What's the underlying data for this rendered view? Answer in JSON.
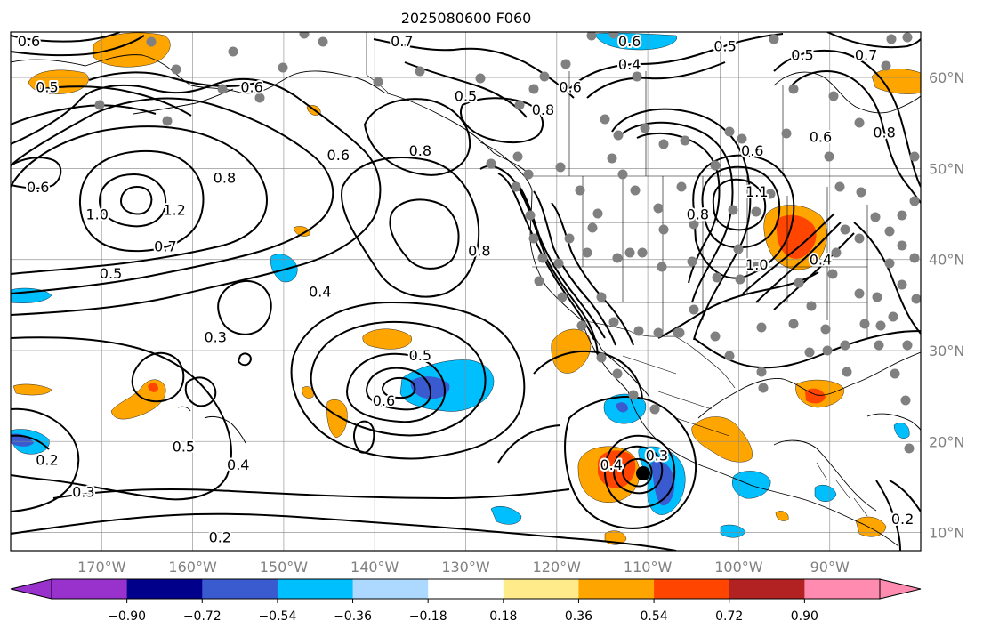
{
  "title": "2025080600 F060",
  "map": {
    "lon_range": [
      -180,
      -80
    ],
    "lat_range": [
      8,
      65
    ],
    "lat_ticks": [
      {
        "value": 60,
        "label": "60°N"
      },
      {
        "value": 50,
        "label": "50°N"
      },
      {
        "value": 40,
        "label": "40°N"
      },
      {
        "value": 30,
        "label": "30°N"
      },
      {
        "value": 20,
        "label": "20°N"
      },
      {
        "value": 10,
        "label": "10°N"
      }
    ],
    "lon_ticks": [
      {
        "value": -170,
        "label": "170°W"
      },
      {
        "value": -160,
        "label": "160°W"
      },
      {
        "value": -150,
        "label": "150°W"
      },
      {
        "value": -140,
        "label": "140°W"
      },
      {
        "value": -130,
        "label": "130°W"
      },
      {
        "value": -120,
        "label": "120°W"
      },
      {
        "value": -110,
        "label": "110°W"
      },
      {
        "value": -100,
        "label": "100°W"
      },
      {
        "value": -90,
        "label": "90°W"
      }
    ],
    "tick_label_color": "#808080",
    "grid": true
  },
  "contour_labels": [
    {
      "text": "0.6",
      "lon": -178,
      "lat": 64
    },
    {
      "text": "0.5",
      "lon": -176,
      "lat": 59
    },
    {
      "text": "0.6",
      "lon": -177,
      "lat": 48
    },
    {
      "text": "1.0",
      "lon": -170.5,
      "lat": 45
    },
    {
      "text": "1.2",
      "lon": -162,
      "lat": 45.5
    },
    {
      "text": "0.8",
      "lon": -156.5,
      "lat": 49
    },
    {
      "text": "0.7",
      "lon": -163,
      "lat": 41.5
    },
    {
      "text": "0.5",
      "lon": -169,
      "lat": 38.5
    },
    {
      "text": "0.6",
      "lon": -153.5,
      "lat": 59
    },
    {
      "text": "0.6",
      "lon": -144,
      "lat": 51.5
    },
    {
      "text": "0.8",
      "lon": -135,
      "lat": 52
    },
    {
      "text": "0.5",
      "lon": -130,
      "lat": 58
    },
    {
      "text": "0.7",
      "lon": -137,
      "lat": 64
    },
    {
      "text": "0.8",
      "lon": -121.5,
      "lat": 56.5
    },
    {
      "text": "0.8",
      "lon": -128.5,
      "lat": 41
    },
    {
      "text": "0.4",
      "lon": -146,
      "lat": 36.5
    },
    {
      "text": "0.3",
      "lon": -157.5,
      "lat": 31.5
    },
    {
      "text": "0.5",
      "lon": -135,
      "lat": 29.5
    },
    {
      "text": "0.6",
      "lon": -139,
      "lat": 24.5
    },
    {
      "text": "0.5",
      "lon": -161,
      "lat": 19.5
    },
    {
      "text": "0.4",
      "lon": -155,
      "lat": 17.5
    },
    {
      "text": "0.2",
      "lon": -176,
      "lat": 18
    },
    {
      "text": "0.3",
      "lon": -172,
      "lat": 14.5
    },
    {
      "text": "0.2",
      "lon": -157,
      "lat": 9.5
    },
    {
      "text": "0.4",
      "lon": -114,
      "lat": 17.5
    },
    {
      "text": "0.3",
      "lon": -109,
      "lat": 18.5
    },
    {
      "text": "0.6",
      "lon": -112,
      "lat": 64
    },
    {
      "text": "0.5",
      "lon": -101.5,
      "lat": 63.5
    },
    {
      "text": "0.4",
      "lon": -112,
      "lat": 61.5
    },
    {
      "text": "0.6",
      "lon": -118.5,
      "lat": 59
    },
    {
      "text": "0.8",
      "lon": -104.5,
      "lat": 45
    },
    {
      "text": "1.1",
      "lon": -98,
      "lat": 47.5
    },
    {
      "text": "0.6",
      "lon": -98.5,
      "lat": 52
    },
    {
      "text": "1.0",
      "lon": -98,
      "lat": 39.5
    },
    {
      "text": "0.4",
      "lon": -91,
      "lat": 40
    },
    {
      "text": "0.5",
      "lon": -93,
      "lat": 62.5
    },
    {
      "text": "0.7",
      "lon": -86,
      "lat": 62.5
    },
    {
      "text": "0.6",
      "lon": -91,
      "lat": 53.5
    },
    {
      "text": "0.8",
      "lon": -84,
      "lat": 54
    },
    {
      "text": "0.2",
      "lon": -82,
      "lat": 11.5
    }
  ],
  "colorbar": {
    "colors": [
      "#9932CC",
      "#00008B",
      "#3A5BCF",
      "#00BFFF",
      "#ADD8FF",
      "#FFFFFF",
      "#FFEB8A",
      "#FFA500",
      "#FF4500",
      "#B22222",
      "#FF8CB0"
    ],
    "tick_labels": [
      "−0.90",
      "−0.72",
      "−0.54",
      "−0.36",
      "−0.18",
      "0.18",
      "0.36",
      "0.54",
      "0.72",
      "0.90"
    ],
    "extend": "both"
  },
  "storm_marker": {
    "lon": -110.5,
    "lat": 16.5,
    "color": "#000000"
  },
  "station_marker_color": "#808080"
}
